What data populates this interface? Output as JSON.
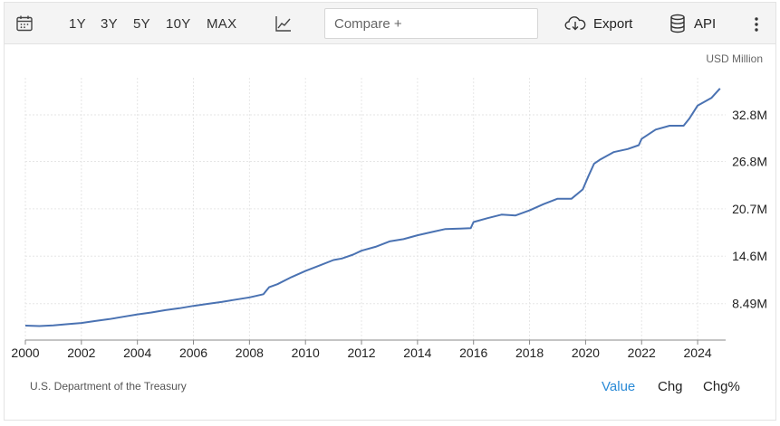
{
  "toolbar": {
    "ranges": [
      "1Y",
      "3Y",
      "5Y",
      "10Y",
      "MAX"
    ],
    "compare_placeholder": "Compare +",
    "export_label": "Export",
    "api_label": "API",
    "icons": [
      "calendar-icon",
      "line-chart-icon",
      "cloud-download-icon",
      "database-icon",
      "more-vertical-icon"
    ]
  },
  "chart": {
    "unit_label": "USD Million",
    "source": "U.S. Department of the Treasury",
    "line_color": "#4a72b2"
  },
  "tabs": {
    "value": "Value",
    "chg": "Chg",
    "chg_pct": "Chg%",
    "active_color": "#2a8ad6"
  },
  "chart_data": {
    "type": "line",
    "title": "",
    "xlabel": "",
    "ylabel": "",
    "x_ticks": [
      "2000",
      "2002",
      "2004",
      "2006",
      "2008",
      "2010",
      "2012",
      "2014",
      "2016",
      "2018",
      "2020",
      "2022",
      "2024"
    ],
    "y_ticks": [
      "8.49M",
      "14.6M",
      "20.7M",
      "26.8M",
      "32.8M"
    ],
    "y_tick_values": [
      8490000,
      14600000,
      20700000,
      26800000,
      32800000
    ],
    "xlim": [
      2000,
      2025
    ],
    "ylim": [
      3000000,
      39000000
    ],
    "grid": true,
    "series": [
      {
        "x": [
          2000.0,
          2000.5,
          2001.0,
          2001.5,
          2002.0,
          2002.5,
          2003.0,
          2003.5,
          2004.0,
          2004.5,
          2005.0,
          2005.5,
          2006.0,
          2006.5,
          2007.0,
          2007.5,
          2008.0,
          2008.5,
          2008.7,
          2009.0,
          2009.5,
          2010.0,
          2010.5,
          2011.0,
          2011.3,
          2011.7,
          2012.0,
          2012.5,
          2013.0,
          2013.5,
          2014.0,
          2014.5,
          2015.0,
          2015.5,
          2015.9,
          2016.0,
          2016.5,
          2017.0,
          2017.5,
          2018.0,
          2018.5,
          2019.0,
          2019.5,
          2019.9,
          2020.1,
          2020.3,
          2020.5,
          2021.0,
          2021.5,
          2021.9,
          2022.0,
          2022.5,
          2023.0,
          2023.5,
          2023.7,
          2024.0,
          2024.5,
          2024.8
        ],
        "y": [
          5660000,
          5600000,
          5700000,
          5850000,
          6000000,
          6250000,
          6500000,
          6800000,
          7100000,
          7350000,
          7650000,
          7900000,
          8200000,
          8450000,
          8700000,
          9000000,
          9300000,
          9700000,
          10600000,
          11000000,
          11900000,
          12700000,
          13400000,
          14100000,
          14300000,
          14800000,
          15300000,
          15800000,
          16500000,
          16800000,
          17300000,
          17700000,
          18100000,
          18150000,
          18200000,
          19000000,
          19500000,
          19950000,
          19850000,
          20500000,
          21300000,
          22000000,
          22000000,
          23200000,
          24900000,
          26500000,
          27000000,
          28000000,
          28400000,
          28900000,
          29700000,
          30900000,
          31400000,
          31400000,
          32300000,
          34000000,
          35000000,
          36200000
        ]
      }
    ]
  }
}
